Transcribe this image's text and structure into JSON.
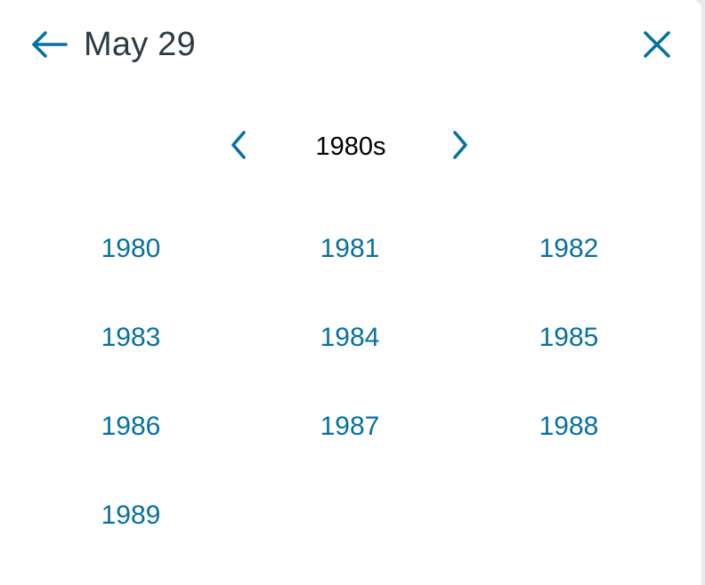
{
  "header": {
    "back_icon": "arrow-left-icon",
    "title": "May 29",
    "close_icon": "close-icon"
  },
  "decade_nav": {
    "prev_icon": "chevron-left-icon",
    "label": "1980s",
    "next_icon": "chevron-right-icon"
  },
  "years": [
    "1980",
    "1981",
    "1982",
    "1983",
    "1984",
    "1985",
    "1986",
    "1987",
    "1988",
    "1989"
  ],
  "colors": {
    "accent": "#0770a3",
    "title_text": "#2d3b45",
    "background": "#ffffff"
  }
}
